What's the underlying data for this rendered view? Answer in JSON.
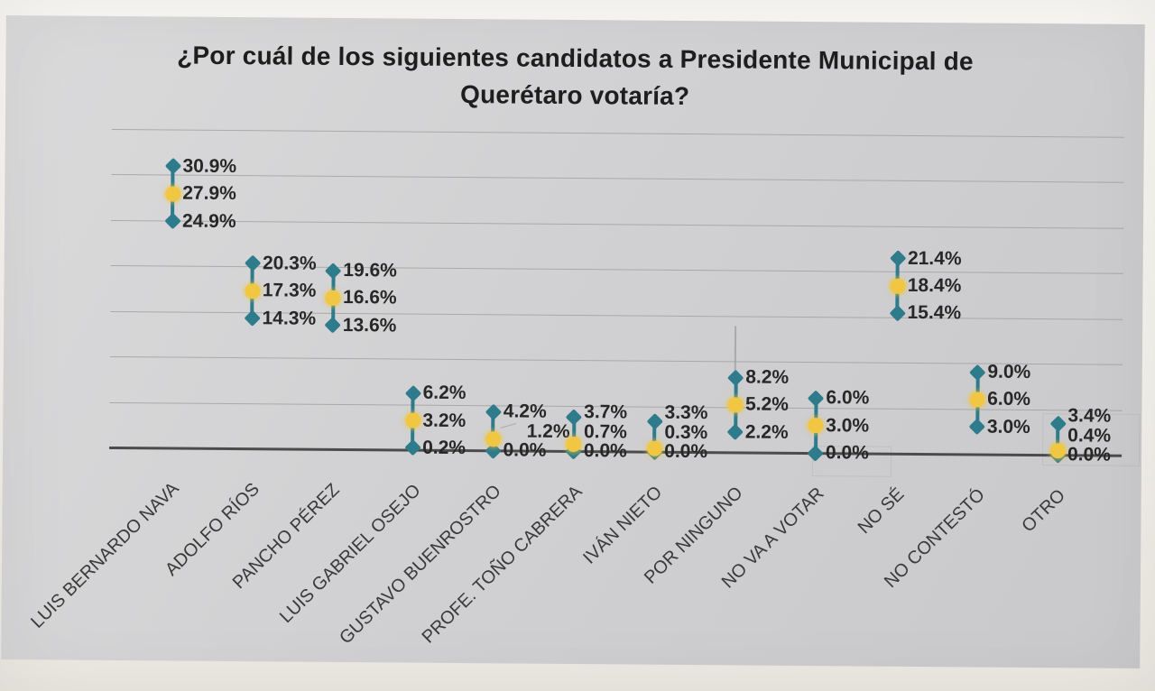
{
  "title": {
    "line1": "¿Por cuál de los siguientes candidatos a Presidente Municipal de",
    "line2": "Querétaro votaría?"
  },
  "chart_data": {
    "type": "scatter",
    "subtype": "high-mid-low range (poll estimate with confidence interval)",
    "title": "¿Por cuál de los siguientes candidatos a Presidente Municipal de Querétaro votaría?",
    "categories": [
      "LUIS BERNARDO NAVA",
      "ADOLFO RÍOS",
      "PANCHO PÉREZ",
      "LUIS GABRIEL OSEJO",
      "GUSTAVO BUENROSTRO",
      "PROFE. TOÑO CABRERA",
      "IVÁN NIETO",
      "POR NINGUNO",
      "NO VA A VOTAR",
      "NO SÉ",
      "NO CONTESTÓ",
      "OTRO"
    ],
    "series": [
      {
        "name": "high",
        "marker": "diamond",
        "color": "#2e7b8b",
        "values": [
          30.9,
          20.3,
          19.6,
          6.2,
          4.2,
          3.7,
          3.3,
          8.2,
          6.0,
          21.4,
          9.0,
          3.4
        ]
      },
      {
        "name": "mid",
        "marker": "circle",
        "color": "#f0c643",
        "values": [
          27.9,
          17.3,
          16.6,
          3.2,
          1.2,
          0.7,
          0.3,
          5.2,
          3.0,
          18.4,
          6.0,
          0.4
        ]
      },
      {
        "name": "low",
        "marker": "diamond",
        "color": "#2e7b8b",
        "values": [
          24.9,
          14.3,
          13.6,
          0.2,
          0.0,
          0.0,
          0.0,
          2.2,
          0.0,
          15.4,
          3.0,
          0.0
        ]
      }
    ],
    "value_label_format": "0.0%",
    "ylim": [
      0,
      35
    ],
    "gridline_step": 5,
    "grid": true,
    "legend": false,
    "y_axis_labels": false,
    "x_label_rotation_deg": 45
  },
  "colors": {
    "range_line": "#2e7b8b",
    "high_low_marker": "#2e7b8b",
    "mid_marker": "#f0c643",
    "value_label": "#272727",
    "category_label": "#3a3a3a",
    "gridline": "#9f9f9f",
    "axis_line": "#4b4b4b",
    "paper": "#cfcfd1",
    "title_text": "#1e1e1e"
  }
}
